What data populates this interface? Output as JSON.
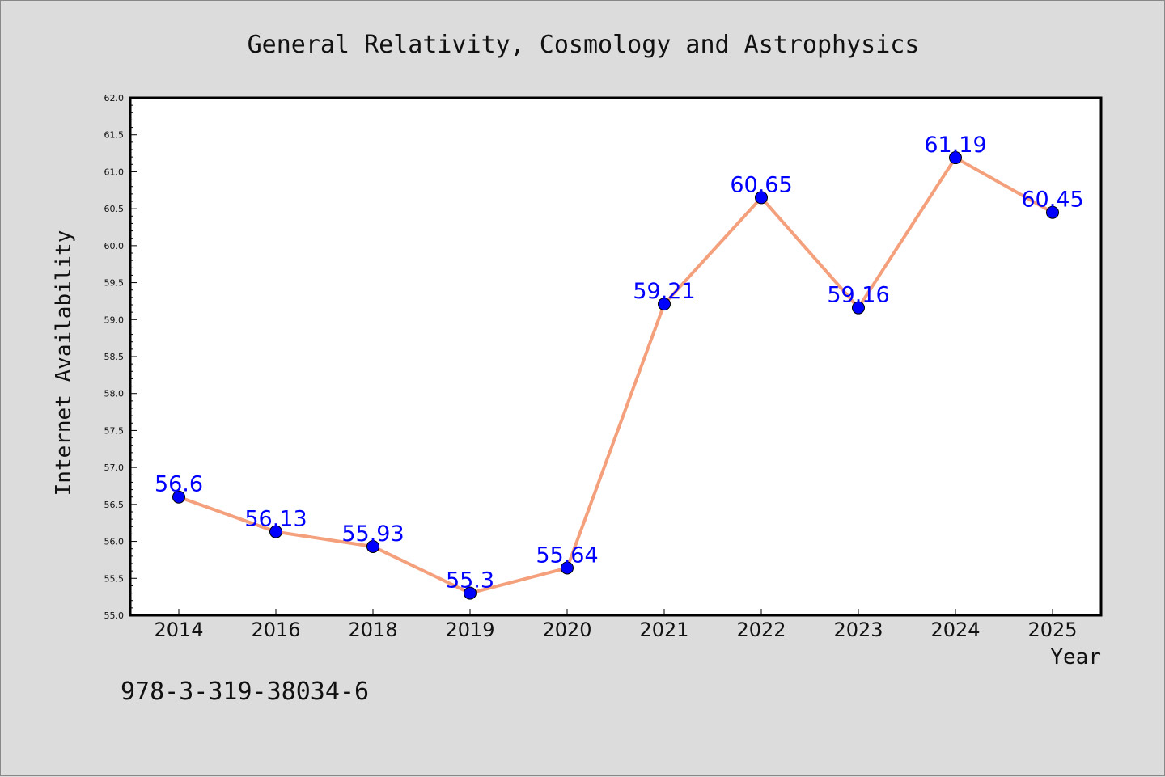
{
  "chart_data": {
    "type": "line",
    "title": "General Relativity, Cosmology and Astrophysics",
    "xlabel": "Year",
    "ylabel": "Internet Availability",
    "categories": [
      "2014",
      "2016",
      "2018",
      "2019",
      "2020",
      "2021",
      "2022",
      "2023",
      "2024",
      "2025"
    ],
    "values": [
      56.6,
      56.13,
      55.93,
      55.3,
      55.64,
      59.21,
      60.65,
      59.16,
      61.19,
      60.45
    ],
    "data_labels": [
      "56.6",
      "56.13",
      "55.93",
      "55.3",
      "55.64",
      "59.21",
      "60.65",
      "59.16",
      "61.19",
      "60.45"
    ],
    "ylim": [
      55.0,
      62.0
    ],
    "yticks": [
      "55.0",
      "55.5",
      "56.0",
      "56.5",
      "57.0",
      "57.5",
      "58.0",
      "58.5",
      "59.0",
      "59.5",
      "60.0",
      "60.5",
      "61.0",
      "61.5",
      "62.0"
    ],
    "grid": false,
    "legend": "none",
    "colors": {
      "line": "#f4a07c",
      "marker": "#0000ff",
      "data_label": "#0000ff",
      "background": "#dcdcdc",
      "plot_background": "#ffffff"
    }
  },
  "footnote": "978-3-319-38034-6"
}
